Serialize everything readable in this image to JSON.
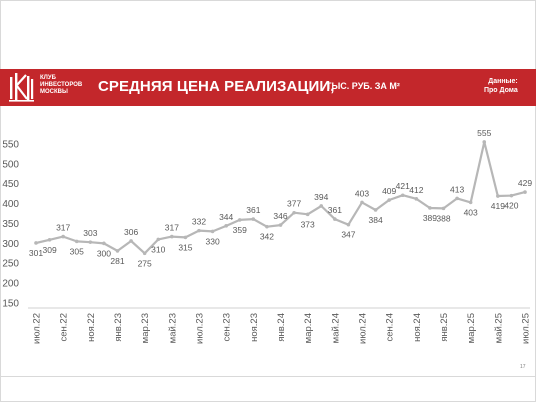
{
  "header": {
    "logo_text": "КЛУБ\nИНВЕСТОРОВ\nМОСКВЫ",
    "title": "СРЕДНЯЯ ЦЕНА РЕАЛИЗАЦИИ,",
    "subtitle": "ТЫС. РУБ. ЗА М²",
    "source": "Данные:\nПро Дома"
  },
  "colors": {
    "header_bg": "#c3272b",
    "line": "#b7b7b7",
    "text": "#595959"
  },
  "page_number": "17",
  "chart_data": {
    "type": "line",
    "x": [
      "июл.22",
      "авг.22",
      "сен.22",
      "окт.22",
      "ноя.22",
      "дек.22",
      "янв.23",
      "фев.23",
      "мар.23",
      "апр.23",
      "май.23",
      "июн.23",
      "июл.23",
      "авг.23",
      "сен.23",
      "окт.23",
      "ноя.23",
      "дек.23",
      "янв.24",
      "фев.24",
      "мар.24",
      "апр.24",
      "май.24",
      "июн.24",
      "июл.24",
      "авг.24",
      "сен.24",
      "окт.24",
      "ноя.24",
      "дек.24",
      "янв.25",
      "фев.25",
      "мар.25",
      "апр.25",
      "май.25",
      "июн.25",
      "июл.25"
    ],
    "x_tick_labels": [
      "июл.22",
      "сен.22",
      "ноя.22",
      "янв.23",
      "мар.23",
      "май.23",
      "июл.23",
      "сен.23",
      "ноя.23",
      "янв.24",
      "мар.24",
      "май.24",
      "июл.24",
      "сен.24",
      "ноя.24",
      "янв.25",
      "мар.25",
      "май.25",
      "июл.25"
    ],
    "series": [
      {
        "values": [
          301,
          309,
          317,
          305,
          303,
          300,
          281,
          306,
          275,
          310,
          317,
          315,
          332,
          330,
          344,
          359,
          361,
          342,
          346,
          377,
          373,
          394,
          361,
          347,
          403,
          384,
          409,
          421,
          412,
          389,
          388,
          413,
          403,
          555,
          419,
          420,
          429
        ]
      }
    ],
    "y_ticks": [
      150,
      200,
      250,
      300,
      350,
      400,
      450,
      500,
      550
    ],
    "ylim": [
      150,
      570
    ],
    "grid": false,
    "legend": "none"
  }
}
